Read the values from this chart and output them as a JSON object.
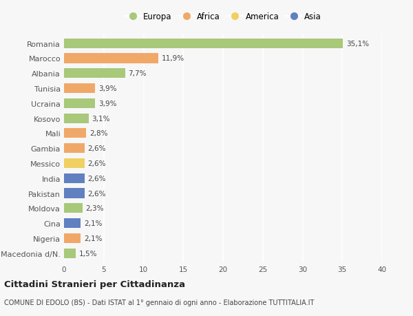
{
  "countries": [
    "Romania",
    "Marocco",
    "Albania",
    "Tunisia",
    "Ucraina",
    "Kosovo",
    "Mali",
    "Gambia",
    "Messico",
    "India",
    "Pakistan",
    "Moldova",
    "Cina",
    "Nigeria",
    "Macedonia d/N."
  ],
  "values": [
    35.1,
    11.9,
    7.7,
    3.9,
    3.9,
    3.1,
    2.8,
    2.6,
    2.6,
    2.6,
    2.6,
    2.3,
    2.1,
    2.1,
    1.5
  ],
  "labels": [
    "35,1%",
    "11,9%",
    "7,7%",
    "3,9%",
    "3,9%",
    "3,1%",
    "2,8%",
    "2,6%",
    "2,6%",
    "2,6%",
    "2,6%",
    "2,3%",
    "2,1%",
    "2,1%",
    "1,5%"
  ],
  "continents": [
    "Europa",
    "Africa",
    "Europa",
    "Africa",
    "Europa",
    "Europa",
    "Africa",
    "Africa",
    "America",
    "Asia",
    "Asia",
    "Europa",
    "Asia",
    "Africa",
    "Europa"
  ],
  "colors": {
    "Europa": "#a8c87a",
    "Africa": "#f0a868",
    "America": "#f0d060",
    "Asia": "#6080c0"
  },
  "legend_order": [
    "Europa",
    "Africa",
    "America",
    "Asia"
  ],
  "xlim": [
    0,
    40
  ],
  "xticks": [
    0,
    5,
    10,
    15,
    20,
    25,
    30,
    35,
    40
  ],
  "title": "Cittadini Stranieri per Cittadinanza",
  "subtitle": "COMUNE DI EDOLO (BS) - Dati ISTAT al 1° gennaio di ogni anno - Elaborazione TUTTITALIA.IT",
  "background_color": "#f7f7f7",
  "grid_color": "#ffffff",
  "bar_height": 0.65
}
